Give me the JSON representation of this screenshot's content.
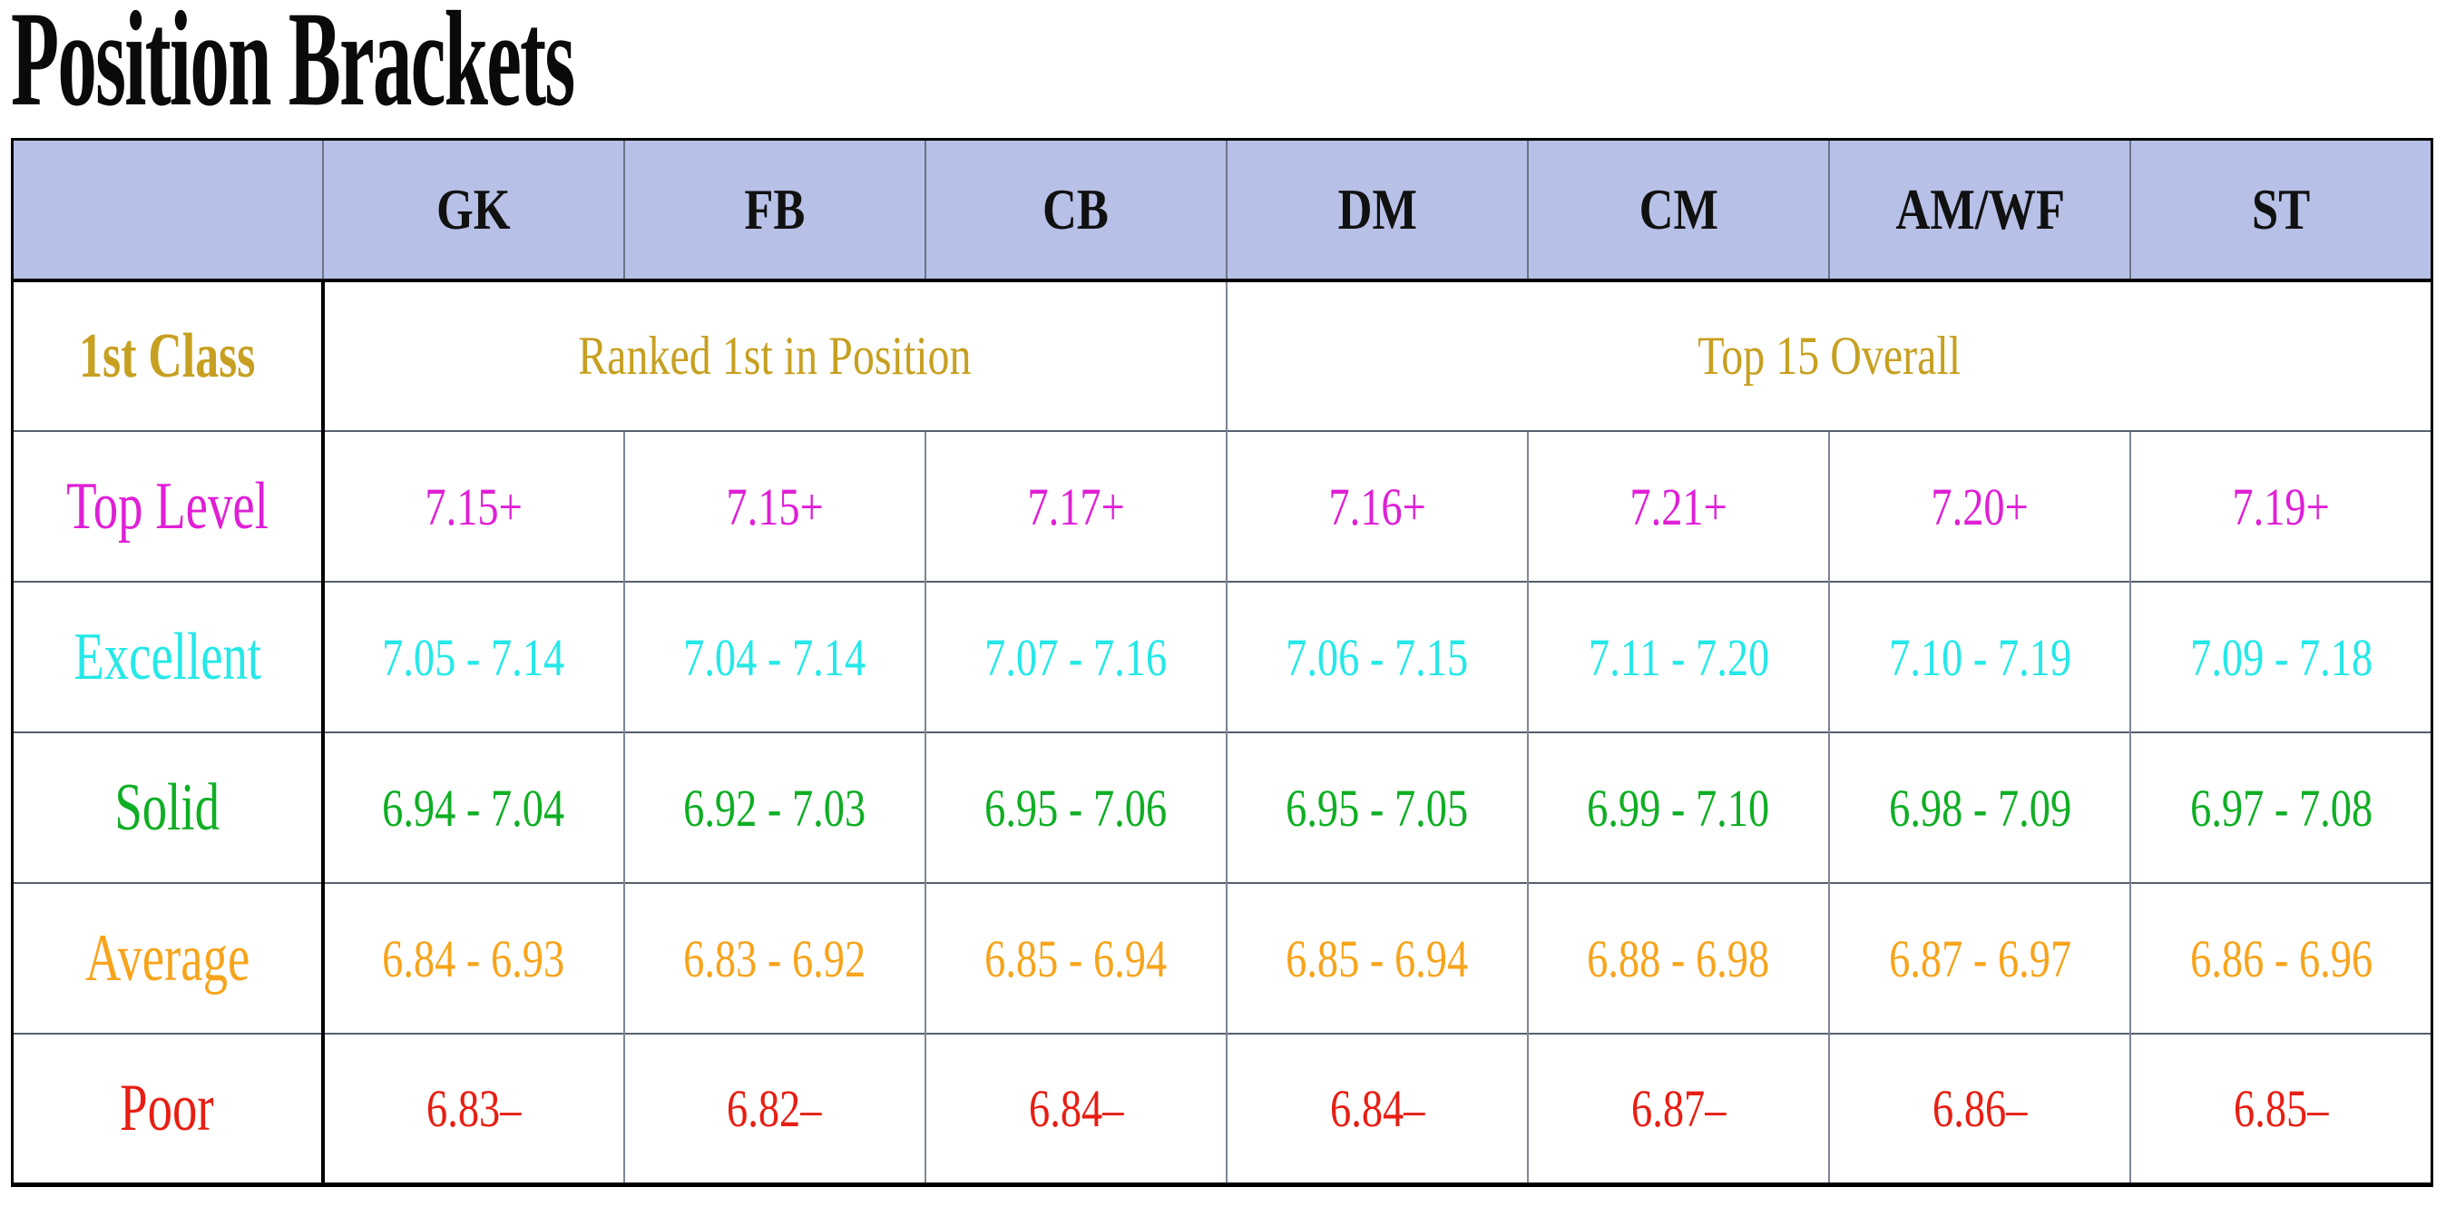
{
  "title": "Position Brackets",
  "colors": {
    "gold": "#c7a021",
    "magenta": "#df1fd6",
    "cyan": "#25e8e8",
    "green": "#0fae24",
    "orange": "#f7a41c",
    "red": "#e71e13",
    "header_bg": "#b7c0e6",
    "header_text": "#111111",
    "grid_horizontal": "#565f6b",
    "grid_vertical": "#7d8694",
    "outer_border": "#000000"
  },
  "chart_data": {
    "type": "table",
    "title": "Position Brackets",
    "columns": [
      "",
      "GK",
      "FB",
      "CB",
      "DM",
      "CM",
      "AM/WF",
      "ST"
    ],
    "rows": [
      {
        "label": "1st Class",
        "cells": [
          {
            "text": "Ranked 1st in Position",
            "colspan": 3
          },
          {
            "text": "Top 15 Overall",
            "colspan": 4
          }
        ]
      },
      {
        "label": "Top Level",
        "cells": [
          "7.15+",
          "7.15+",
          "7.17+",
          "7.16+",
          "7.21+",
          "7.20+",
          "7.19+"
        ]
      },
      {
        "label": "Excellent",
        "cells": [
          "7.05 - 7.14",
          "7.04 - 7.14",
          "7.07 - 7.16",
          "7.06 - 7.15",
          "7.11 - 7.20",
          "7.10 - 7.19",
          "7.09 - 7.18"
        ]
      },
      {
        "label": "Solid",
        "cells": [
          "6.94 - 7.04",
          "6.92 - 7.03",
          "6.95 - 7.06",
          "6.95 - 7.05",
          "6.99 - 7.10",
          "6.98 - 7.09",
          "6.97 - 7.08"
        ]
      },
      {
        "label": "Average",
        "cells": [
          "6.84 - 6.93",
          "6.83 - 6.92",
          "6.85 - 6.94",
          "6.85 - 6.94",
          "6.88 - 6.98",
          "6.87 - 6.97",
          "6.86 - 6.96"
        ]
      },
      {
        "label": "Poor",
        "cells": [
          "6.83–",
          "6.82–",
          "6.84–",
          "6.84–",
          "6.87–",
          "6.86–",
          "6.85–"
        ]
      }
    ]
  },
  "table": {
    "columns": [
      "GK",
      "FB",
      "CB",
      "DM",
      "CM",
      "AM/WF",
      "ST"
    ],
    "rows": [
      {
        "label": "1st Class",
        "color": "gold",
        "merged": [
          {
            "text": "Ranked 1st in Position",
            "span": 3
          },
          {
            "text": "Top 15 Overall",
            "span": 4
          }
        ]
      },
      {
        "label": "Top Level",
        "color": "magenta",
        "values": [
          "7.15+",
          "7.15+",
          "7.17+",
          "7.16+",
          "7.21+",
          "7.20+",
          "7.19+"
        ]
      },
      {
        "label": "Excellent",
        "color": "cyan",
        "values": [
          "7.05 - 7.14",
          "7.04 - 7.14",
          "7.07 - 7.16",
          "7.06 - 7.15",
          "7.11 - 7.20",
          "7.10 - 7.19",
          "7.09 - 7.18"
        ]
      },
      {
        "label": "Solid",
        "color": "green",
        "values": [
          "6.94 - 7.04",
          "6.92 - 7.03",
          "6.95 - 7.06",
          "6.95 - 7.05",
          "6.99 - 7.10",
          "6.98 - 7.09",
          "6.97 - 7.08"
        ]
      },
      {
        "label": "Average",
        "color": "orange",
        "values": [
          "6.84 - 6.93",
          "6.83 - 6.92",
          "6.85 - 6.94",
          "6.85 - 6.94",
          "6.88 - 6.98",
          "6.87 - 6.97",
          "6.86 - 6.96"
        ]
      },
      {
        "label": "Poor",
        "color": "red",
        "values": [
          "6.83–",
          "6.82–",
          "6.84–",
          "6.84–",
          "6.87–",
          "6.86–",
          "6.85–"
        ]
      }
    ]
  }
}
